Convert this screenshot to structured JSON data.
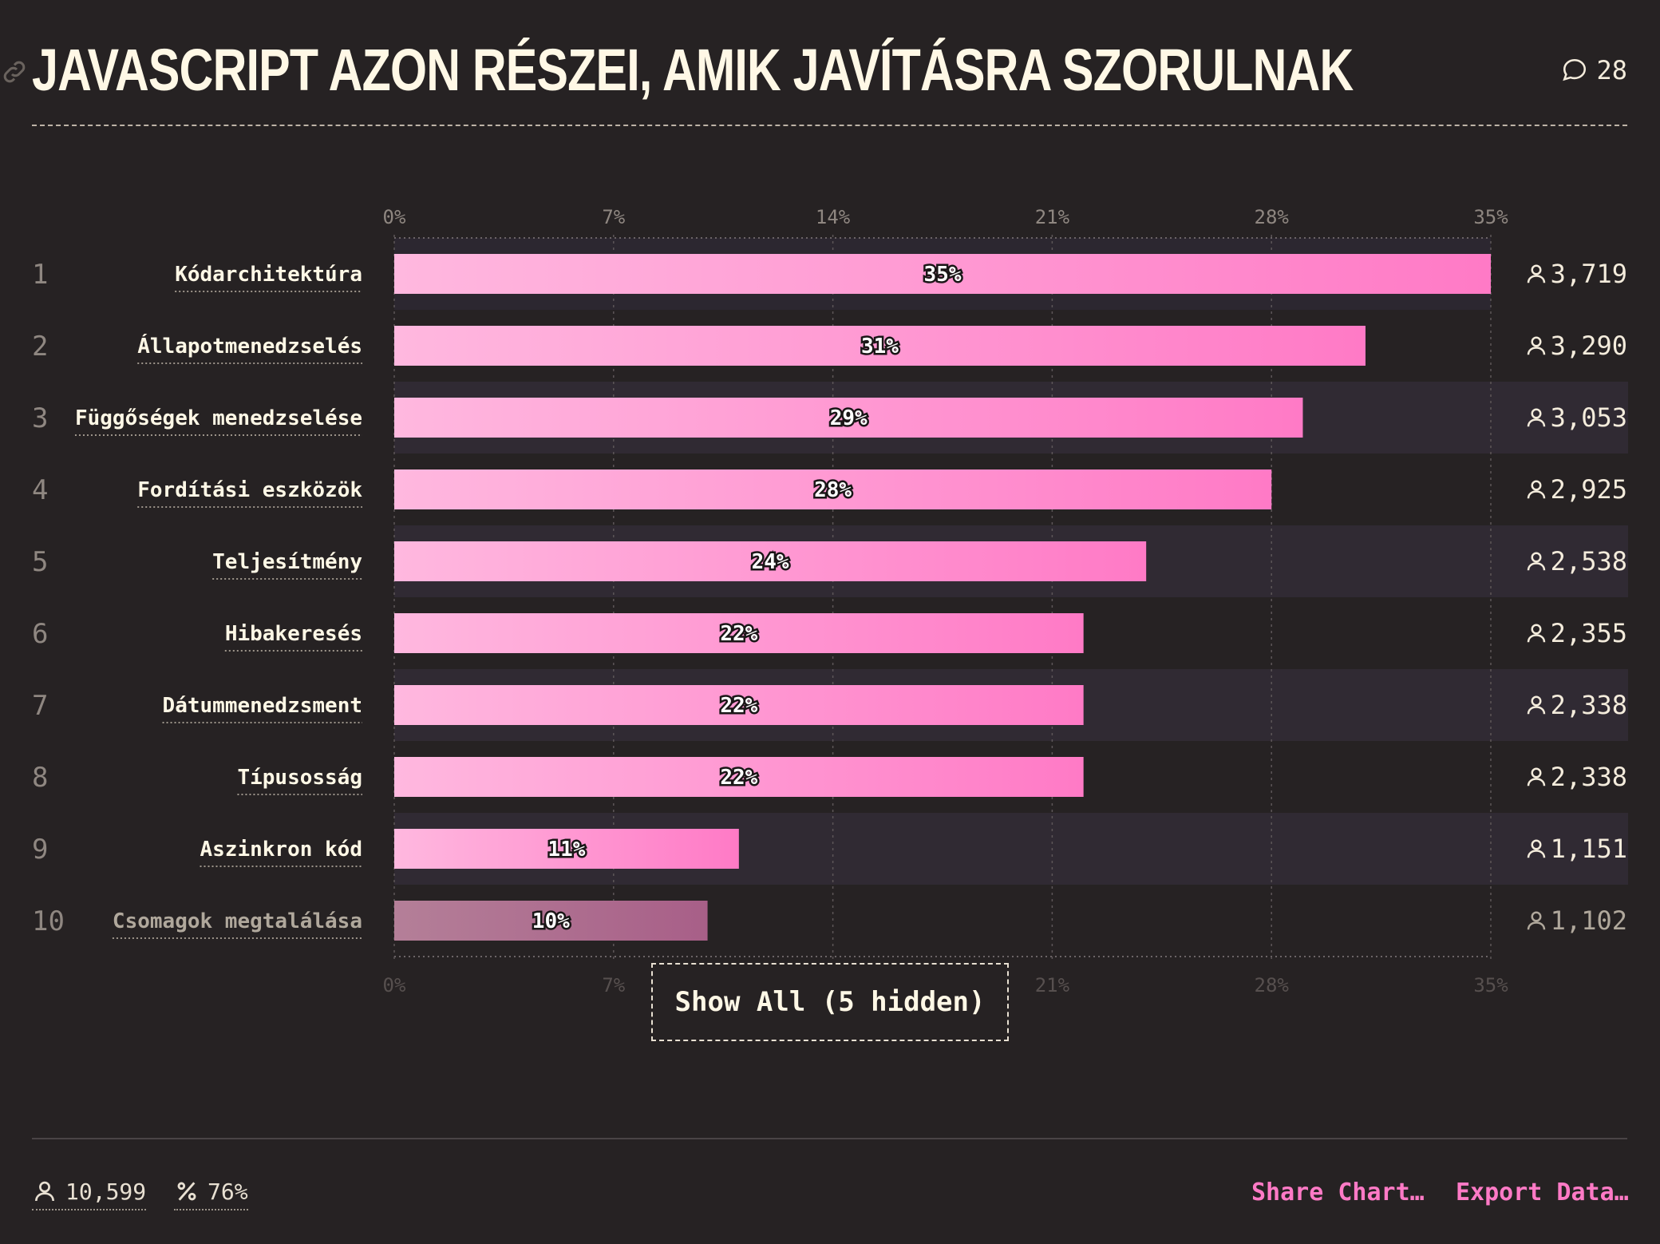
{
  "title": "JAVASCRIPT AZON RÉSZEI, AMIK JAVÍTÁSRA SZORULNAK",
  "comment_count": "28",
  "show_all_label": "Show All (5 hidden)",
  "footer": {
    "respondents": "10,599",
    "percent": "76%",
    "share_label": "Share Chart…",
    "export_label": "Export Data…"
  },
  "colors": {
    "background": "#262223",
    "bar_start": "#ffb8df",
    "bar_end": "#ff7ac6",
    "bar_muted_start": "#b47f98",
    "bar_muted_end": "#a85f88",
    "row_band": "#302a33",
    "text": "#f4ecdc",
    "accent": "#ff7ac6"
  },
  "chart_data": {
    "type": "bar",
    "orientation": "horizontal",
    "xlim": [
      0,
      35
    ],
    "ticks": [
      "0%",
      "7%",
      "14%",
      "21%",
      "28%",
      "35%"
    ],
    "grid": true,
    "categories": [
      "Kódarchitektúra",
      "Állapotmenedzselés",
      "Függőségek menedzselése",
      "Fordítási eszközök",
      "Teljesítmény",
      "Hibakeresés",
      "Dátummenedzsment",
      "Típusosság",
      "Aszinkron kód",
      "Csomagok megtalálása"
    ],
    "ranks": [
      "1",
      "2",
      "3",
      "4",
      "5",
      "6",
      "7",
      "8",
      "9",
      "10"
    ],
    "values": [
      35,
      31,
      29,
      28,
      24,
      22,
      22,
      22,
      11,
      10
    ],
    "value_labels": [
      "35%",
      "31%",
      "29%",
      "28%",
      "24%",
      "22%",
      "22%",
      "22%",
      "11%",
      "10%"
    ],
    "counts": [
      "3,719",
      "3,290",
      "3,053",
      "2,925",
      "2,538",
      "2,355",
      "2,338",
      "2,338",
      "1,151",
      "1,102"
    ],
    "muted_rows": [
      9
    ]
  }
}
